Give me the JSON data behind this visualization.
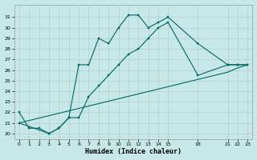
{
  "xlabel": "Humidex (Indice chaleur)",
  "bg_color": "#c8e8e8",
  "grid_color": "#b0d0d0",
  "line_color": "#006666",
  "xlim": [
    -0.5,
    23.5
  ],
  "ylim": [
    19.5,
    32.2
  ],
  "xticks": [
    0,
    1,
    2,
    3,
    4,
    5,
    6,
    7,
    8,
    9,
    10,
    11,
    12,
    13,
    14,
    15,
    18,
    21,
    22,
    23
  ],
  "yticks": [
    20,
    21,
    22,
    23,
    24,
    25,
    26,
    27,
    28,
    29,
    30,
    31
  ],
  "line1_x": [
    0,
    1,
    2,
    3,
    4,
    5,
    6,
    7,
    8,
    9,
    10,
    11,
    12,
    13,
    14,
    15,
    18,
    21,
    22,
    23
  ],
  "line1_y": [
    22,
    20.5,
    20.5,
    20,
    20.5,
    21.5,
    26.5,
    26.5,
    29,
    28.5,
    30,
    31.2,
    31.2,
    30,
    30.5,
    31,
    28.5,
    26.5,
    26.5,
    26.5
  ],
  "line2_x": [
    0,
    3,
    4,
    5,
    6,
    7,
    8,
    9,
    10,
    11,
    12,
    13,
    14,
    15,
    18,
    21,
    22,
    23
  ],
  "line2_y": [
    21,
    20,
    20.5,
    21.5,
    21.5,
    23.5,
    24.5,
    25.5,
    26.5,
    27.5,
    28,
    29,
    30,
    30.5,
    25.5,
    26.5,
    26.5,
    26.5
  ],
  "line3_x": [
    0,
    21,
    22,
    23
  ],
  "line3_y": [
    21,
    25.8,
    26.2,
    26.5
  ]
}
